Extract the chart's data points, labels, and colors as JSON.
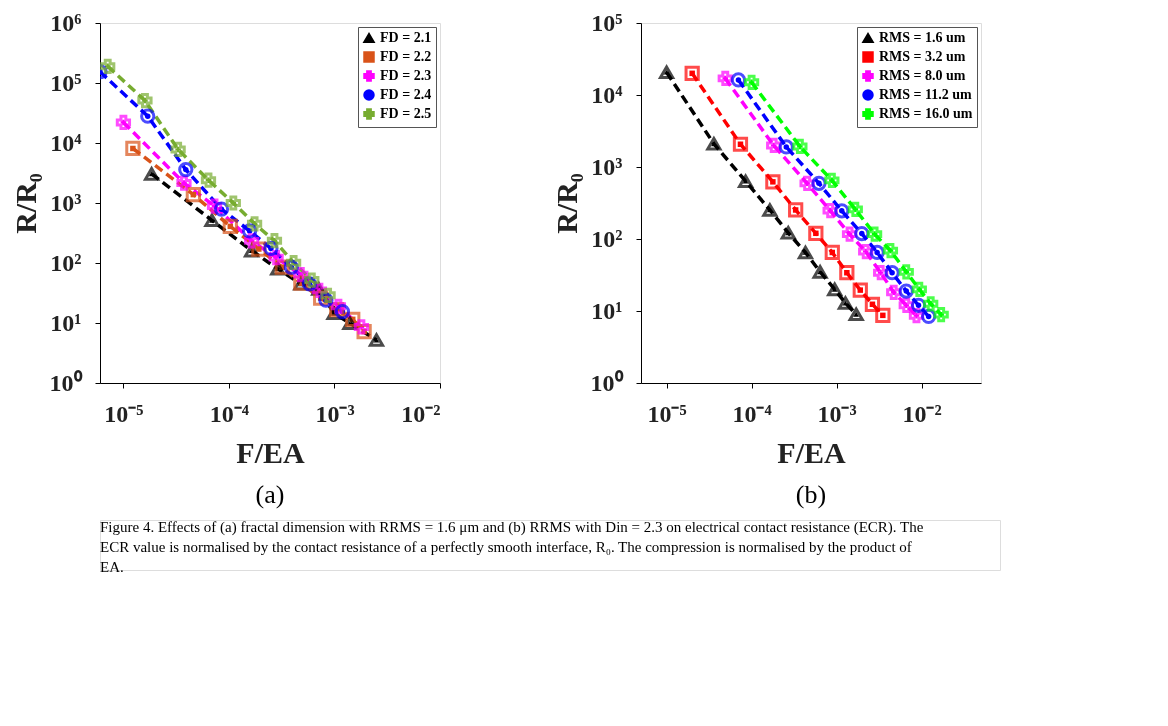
{
  "chart_data": [
    {
      "type": "line",
      "title": "(a)",
      "xlabel": "F/EA",
      "ylabel": "R/R₀",
      "log": "xy",
      "grid": false,
      "legend": "top right",
      "line_style": "dashed",
      "xlim": [
        6e-06,
        0.01
      ],
      "ylim": [
        1,
        1000000
      ],
      "xticks": [
        {
          "value": 1e-05,
          "label": "10⁻⁵"
        },
        {
          "value": 0.0001,
          "label": "10⁻⁴"
        },
        {
          "value": 0.001,
          "label": "10⁻³"
        },
        {
          "value": 0.01,
          "label": "10⁻²"
        }
      ],
      "yticks": [
        {
          "value": 1,
          "label": "10⁰"
        },
        {
          "value": 10,
          "label": "10¹"
        },
        {
          "value": 100,
          "label": "10²"
        },
        {
          "value": 1000,
          "label": "10³"
        },
        {
          "value": 10000,
          "label": "10⁴"
        },
        {
          "value": 100000,
          "label": "10⁵"
        },
        {
          "value": 1000000,
          "label": "10⁶"
        }
      ],
      "series": [
        {
          "name": "FD = 2.1",
          "color": "#000000",
          "marker": "triangle",
          "x": [
            1.85e-05,
            6.9e-05,
            0.000164,
            0.00029,
            0.00048,
            0.00071,
            0.00099,
            0.0014,
            0.0025
          ],
          "values": [
            3060,
            515,
            161,
            80,
            45,
            37,
            14.5,
            9.9,
            5.2
          ]
        },
        {
          "name": "FD = 2.2",
          "color": "#d95319",
          "marker": "square",
          "x": [
            1.23e-05,
            4.6e-05,
            0.000103,
            0.000192,
            0.00032,
            0.00048,
            0.00074,
            0.00105,
            0.00149,
            0.00191
          ],
          "values": [
            8100,
            1380,
            408,
            171,
            85,
            46,
            26,
            16.7,
            11.5,
            7.2
          ]
        },
        {
          "name": "FD = 2.3",
          "color": "#ff00ff",
          "marker": "cross",
          "x": [
            1e-05,
            3.75e-05,
            7.3e-05,
            0.000164,
            0.00028,
            0.00048,
            0.00072,
            0.00109,
            0.0018
          ],
          "values": [
            22000,
            2150,
            890,
            234,
            123,
            64,
            35,
            19,
            8.6
          ]
        },
        {
          "name": "FD = 2.4",
          "color": "#0000ff",
          "marker": "circle",
          "x": [
            6e-06,
            1.7e-05,
            3.9e-05,
            8.5e-05,
            0.000157,
            0.00025,
            0.00039,
            0.00058,
            0.00083,
            0.00119
          ],
          "values": [
            154000,
            28000,
            3600,
            790,
            343,
            175,
            85,
            45,
            24,
            15.4
          ]
        },
        {
          "name": "FD = 2.5",
          "color": "#77ac30",
          "marker": "cross",
          "x": [
            7.1e-06,
            1.6e-05,
            3.3e-05,
            6.4e-05,
            0.00011,
            0.000175,
            0.00027,
            0.00041,
            0.00061,
            0.00087
          ],
          "values": [
            190000,
            51000,
            7800,
            2400,
            1000,
            450,
            235,
            101,
            52,
            29
          ]
        }
      ],
      "annotations": [
        "Figure 4. Effects of (a) fractal dimension with RRMS = 1.6 μm and (b) RRMS with Din = 2.3 on electrical contact resistance (ECR). The ECR value is normalised by the contact resistance of a perfectly smooth interface, R₀. The compression is normalised by the product of EA."
      ]
    },
    {
      "type": "line",
      "title": "(b)",
      "xlabel": "F/EA",
      "ylabel": "R/R₀",
      "log": "xy",
      "grid": false,
      "legend": "top right",
      "line_style": "dashed",
      "xlim": [
        5e-06,
        0.05
      ],
      "ylim": [
        1,
        100000
      ],
      "xticks": [
        {
          "value": 1e-05,
          "label": "10⁻⁵"
        },
        {
          "value": 0.0001,
          "label": "10⁻⁴"
        },
        {
          "value": 0.001,
          "label": "10⁻³"
        },
        {
          "value": 0.01,
          "label": "10⁻²"
        }
      ],
      "yticks": [
        {
          "value": 1,
          "label": "10⁰"
        },
        {
          "value": 10,
          "label": "10¹"
        },
        {
          "value": 100,
          "label": "10²"
        },
        {
          "value": 1000,
          "label": "10³"
        },
        {
          "value": 10000,
          "label": "10⁴"
        },
        {
          "value": 100000,
          "label": "10⁵"
        }
      ],
      "series": [
        {
          "name": "RMS = 1.6 um",
          "color": "#000000",
          "marker": "triangle",
          "x": [
            1e-05,
            3.6e-05,
            8.5e-05,
            0.000164,
            0.00027,
            0.00043,
            0.00064,
            0.00095,
            0.00127,
            0.0017
          ],
          "values": [
            20700,
            2100,
            635,
            253,
            122,
            65,
            35,
            20,
            12.9,
            9
          ]
        },
        {
          "name": "RMS = 3.2 um",
          "color": "#ff0000",
          "marker": "square",
          "x": [
            2e-05,
            7.4e-05,
            0.000178,
            0.00033,
            0.00057,
            0.00089,
            0.00132,
            0.0019,
            0.00264,
            0.0035
          ],
          "values": [
            20000,
            2070,
            622,
            253,
            120,
            65,
            34,
            19.5,
            12.4,
            8.7
          ]
        },
        {
          "name": "RMS = 8.0 um",
          "color": "#ff00ff",
          "marker": "cross",
          "x": [
            4.9e-05,
            0.000182,
            0.00045,
            0.00084,
            0.00142,
            0.0022,
            0.0033,
            0.0047,
            0.0066,
            0.0087
          ],
          "values": [
            17000,
            1990,
            593,
            248,
            117,
            67,
            34,
            18.2,
            12,
            8.6
          ]
        },
        {
          "name": "RMS = 11.2 um",
          "color": "#0000ff",
          "marker": "circle",
          "x": [
            7e-05,
            0.000256,
            0.00062,
            0.00115,
            0.00198,
            0.003,
            0.0045,
            0.0066,
            0.0092,
            0.0121
          ],
          "values": [
            16200,
            1900,
            593,
            246,
            119,
            65,
            34,
            18.9,
            12,
            8.4
          ]
        },
        {
          "name": "RMS = 16.0 um",
          "color": "#00ff00",
          "marker": "cross",
          "x": [
            0.0001,
            0.00037,
            0.00088,
            0.00166,
            0.0028,
            0.0043,
            0.0066,
            0.0094,
            0.0128,
            0.017
          ],
          "values": [
            15000,
            1930,
            653,
            258,
            117,
            69,
            35,
            20,
            12.6,
            8.9
          ]
        }
      ]
    }
  ]
}
